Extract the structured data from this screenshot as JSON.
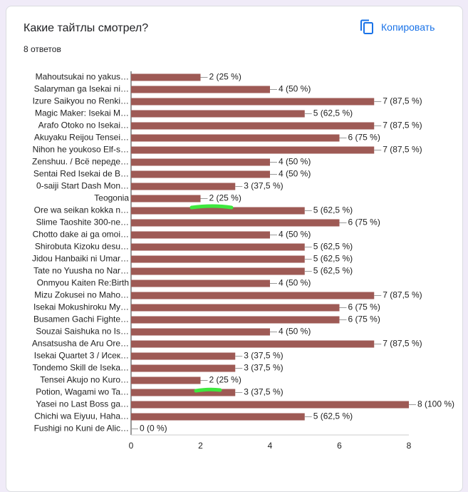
{
  "header": {
    "title": "Какие тайтлы смотрел?",
    "responses": "8 ответов",
    "copy": "Копировать"
  },
  "chart_data": {
    "type": "bar",
    "orientation": "horizontal",
    "color": "#9e5a55",
    "categories": [
      "Mahoutsukai no yakus…",
      "Salaryman ga Isekai ni…",
      "Izure Saikyou no Renki…",
      "Magic Maker: Isekai M…",
      "Arafo Otoko no Isekai…",
      "Akuyaku Reijou Tensei…",
      "Nihon he youkoso Elf-s…",
      "Zenshuu. / Всё переде…",
      "Sentai Red Isekai de B…",
      "0-saiji Start Dash Mon…",
      "Teogonia",
      "Ore wa seikan kokka n…",
      "Slime Taoshite 300-ne…",
      "Chotto dake ai ga omoi…",
      "Shirobuta Kizoku desu…",
      "Jidou Hanbaiki ni Umar…",
      "Tate no Yuusha no Nar…",
      "Onmyou Kaiten Re:Birth",
      "Mizu Zokusei no Maho…",
      "Isekai Mokushiroku My…",
      "Busamen Gachi Fighte…",
      "Souzai Saishuka no Is…",
      "Ansatsusha de Aru Ore…",
      "Isekai Quartet 3 / Исек…",
      "Tondemo Skill de Iseka…",
      "Tensei Akujo no Kuro…",
      "Potion, Wagami wo Ta…",
      "Yasei no Last Boss ga…",
      "Chichi wa Eiyuu, Haha…",
      "Fushigi no Kuni de Alic…"
    ],
    "values": [
      2,
      4,
      7,
      5,
      7,
      6,
      7,
      4,
      4,
      3,
      2,
      5,
      6,
      4,
      5,
      5,
      5,
      4,
      7,
      6,
      6,
      4,
      7,
      3,
      3,
      2,
      3,
      8,
      5,
      0
    ],
    "value_labels": [
      "2 (25 %)",
      "4 (50 %)",
      "7 (87,5 %)",
      "5 (62,5 %)",
      "7 (87,5 %)",
      "6 (75 %)",
      "7 (87,5 %)",
      "4 (50 %)",
      "4 (50 %)",
      "3 (37,5 %)",
      "2 (25 %)",
      "5 (62,5 %)",
      "6 (75 %)",
      "4 (50 %)",
      "5 (62,5 %)",
      "5 (62,5 %)",
      "5 (62,5 %)",
      "4 (50 %)",
      "7 (87,5 %)",
      "6 (75 %)",
      "6 (75 %)",
      "4 (50 %)",
      "7 (87,5 %)",
      "3 (37,5 %)",
      "3 (37,5 %)",
      "2 (25 %)",
      "3 (37,5 %)",
      "8 (100 %)",
      "5 (62,5 %)",
      "0 (0 %)"
    ],
    "xlim": [
      0,
      8
    ],
    "xticks": [
      0,
      2,
      4,
      6,
      8
    ]
  }
}
